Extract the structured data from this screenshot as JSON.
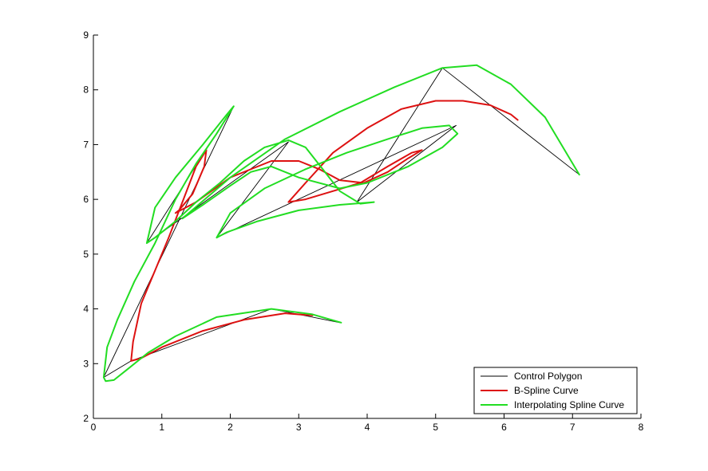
{
  "chart_data": {
    "type": "line",
    "title": "",
    "xlabel": "",
    "ylabel": "",
    "xlim": [
      0,
      8
    ],
    "ylim": [
      2,
      9
    ],
    "xticks": [
      "0",
      "1",
      "2",
      "3",
      "4",
      "5",
      "6",
      "7",
      "8"
    ],
    "yticks": [
      "2",
      "3",
      "4",
      "5",
      "6",
      "7",
      "8",
      "9"
    ],
    "grid": false,
    "legend_position": "bottom-right",
    "series": [
      {
        "name": "Control Polygon",
        "color": "#000000",
        "x": [
          3.6,
          2.6,
          0.55,
          0.15,
          2.05,
          0.78,
          2.85,
          1.8,
          5.3,
          3.85,
          5.1,
          7.1
        ],
        "y": [
          3.75,
          4.0,
          3.05,
          2.75,
          7.7,
          5.2,
          7.05,
          5.3,
          7.35,
          5.95,
          8.4,
          6.45
        ]
      },
      {
        "name": "B-Spline Curve",
        "color": "#dd1111",
        "x": [
          3.2,
          2.8,
          2.2,
          1.6,
          1.0,
          0.7,
          0.55,
          0.58,
          0.7,
          0.9,
          1.1,
          1.3,
          1.5,
          1.65,
          1.62,
          1.45,
          1.25,
          1.2,
          1.5,
          2.0,
          2.6,
          3.0,
          3.3,
          3.6,
          3.95,
          4.3,
          4.6,
          4.8,
          4.65,
          4.3,
          3.9,
          3.5,
          3.1,
          2.85,
          3.1,
          3.5,
          4.0,
          4.5,
          5.0,
          5.4,
          5.8,
          6.1,
          6.2
        ],
        "y": [
          3.88,
          3.92,
          3.8,
          3.6,
          3.3,
          3.1,
          3.05,
          3.4,
          4.1,
          4.7,
          5.3,
          5.95,
          6.6,
          6.9,
          6.6,
          6.1,
          5.8,
          5.75,
          5.95,
          6.4,
          6.7,
          6.7,
          6.55,
          6.35,
          6.3,
          6.5,
          6.75,
          6.9,
          6.85,
          6.6,
          6.3,
          6.15,
          6.0,
          5.95,
          6.3,
          6.85,
          7.3,
          7.65,
          7.8,
          7.8,
          7.72,
          7.55,
          7.45
        ]
      },
      {
        "name": "Interpolating Spline Curve",
        "color": "#22dd22",
        "x": [
          3.62,
          3.2,
          2.6,
          1.8,
          1.2,
          0.8,
          0.5,
          0.3,
          0.18,
          0.15,
          0.2,
          0.35,
          0.6,
          0.9,
          1.2,
          1.5,
          1.8,
          2.05,
          1.95,
          1.6,
          1.2,
          0.9,
          0.78,
          0.9,
          1.2,
          1.5,
          1.85,
          2.2,
          2.5,
          2.85,
          3.1,
          3.35,
          3.6,
          3.9,
          4.1,
          3.6,
          3.0,
          2.4,
          1.95,
          1.8,
          2.0,
          2.5,
          3.1,
          3.7,
          4.3,
          4.8,
          5.2,
          5.32,
          5.1,
          4.6,
          4.0,
          3.6,
          3.0,
          2.6,
          2.3,
          2.0,
          1.6,
          1.3,
          2.0,
          2.8,
          3.6,
          4.4,
          5.1,
          5.6,
          6.1,
          6.6,
          7.1
        ],
        "y": [
          3.75,
          3.9,
          4.0,
          3.85,
          3.5,
          3.2,
          2.9,
          2.7,
          2.68,
          2.75,
          3.3,
          3.8,
          4.5,
          5.2,
          6.0,
          6.65,
          7.2,
          7.7,
          7.55,
          7.0,
          6.4,
          5.85,
          5.2,
          5.3,
          5.6,
          5.95,
          6.3,
          6.7,
          6.95,
          7.08,
          6.95,
          6.55,
          6.15,
          5.92,
          5.95,
          5.9,
          5.8,
          5.6,
          5.4,
          5.3,
          5.75,
          6.2,
          6.55,
          6.85,
          7.1,
          7.3,
          7.35,
          7.2,
          6.95,
          6.6,
          6.3,
          6.2,
          6.4,
          6.6,
          6.5,
          6.25,
          5.9,
          5.65,
          6.4,
          7.1,
          7.6,
          8.05,
          8.4,
          8.45,
          8.1,
          7.5,
          6.45
        ]
      }
    ]
  }
}
